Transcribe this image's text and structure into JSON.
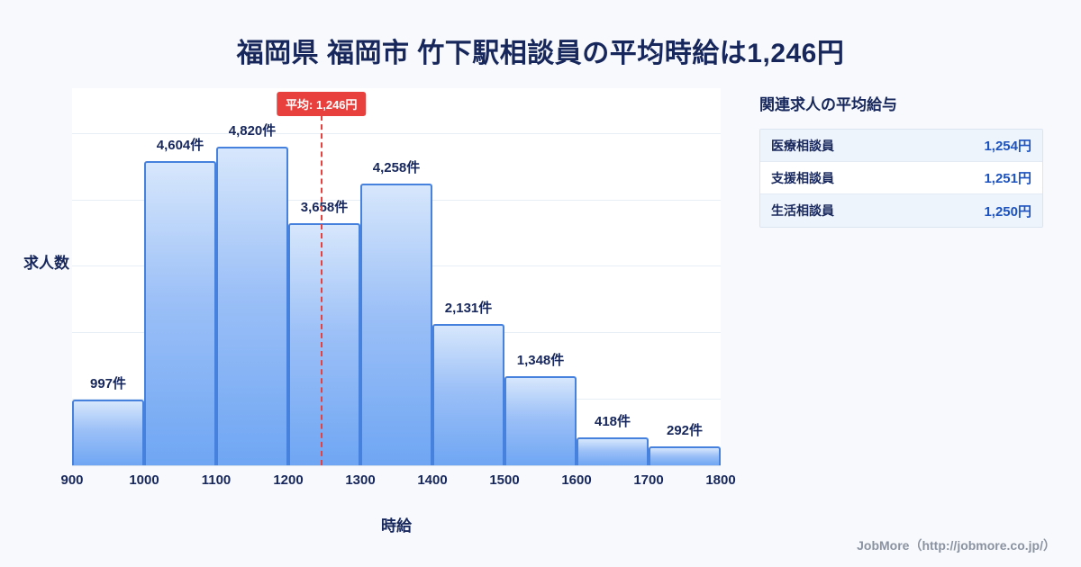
{
  "title": "福岡県 福岡市 竹下駅相談員の平均時給は1,246円",
  "chart_data": {
    "type": "bar",
    "title": "福岡県 福岡市 竹下駅相談員の平均時給は1,246円",
    "xlabel": "時給",
    "ylabel": "求人数",
    "x_ticks": [
      900,
      1000,
      1100,
      1200,
      1300,
      1400,
      1500,
      1600,
      1700,
      1800
    ],
    "categories": [
      "900-1000",
      "1000-1100",
      "1100-1200",
      "1200-1300",
      "1300-1400",
      "1400-1500",
      "1500-1600",
      "1600-1700",
      "1700-1800"
    ],
    "values": [
      997,
      4604,
      4820,
      3658,
      4258,
      2131,
      1348,
      418,
      292
    ],
    "value_labels": [
      "997件",
      "4,604件",
      "4,820件",
      "3,658件",
      "4,258件",
      "2,131件",
      "1,348件",
      "418件",
      "292件"
    ],
    "ylim": [
      0,
      5700
    ],
    "grid_step": 1000,
    "grid": true,
    "average": {
      "value": 1246,
      "label": "平均: 1,246円"
    },
    "colors": {
      "bar_top": "#d7e7fc",
      "bar_bottom": "#6fa6f3",
      "bar_border": "#4681dd",
      "average_line": "#e8413d",
      "title_text": "#17275c"
    }
  },
  "side_panel": {
    "title": "関連求人の平均給与",
    "rows": [
      {
        "label": "医療相談員",
        "value": "1,254円"
      },
      {
        "label": "支援相談員",
        "value": "1,251円"
      },
      {
        "label": "生活相談員",
        "value": "1,250円"
      }
    ]
  },
  "footer": {
    "credit": "JobMore（http://jobmore.co.jp/）"
  }
}
